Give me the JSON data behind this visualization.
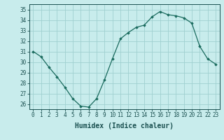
{
  "x": [
    0,
    1,
    2,
    3,
    4,
    5,
    6,
    7,
    8,
    9,
    10,
    11,
    12,
    13,
    14,
    15,
    16,
    17,
    18,
    19,
    20,
    21,
    22,
    23
  ],
  "y": [
    31.0,
    30.5,
    29.5,
    28.6,
    27.6,
    26.5,
    25.8,
    25.7,
    26.5,
    28.3,
    30.3,
    32.2,
    32.8,
    33.3,
    33.5,
    34.3,
    34.8,
    34.5,
    34.4,
    34.2,
    33.7,
    31.5,
    30.3,
    29.8
  ],
  "line_color": "#1a6b5e",
  "marker": "D",
  "marker_size": 1.8,
  "bg_color": "#c8ecec",
  "grid_color": "#a0d0d0",
  "xlabel": "Humidex (Indice chaleur)",
  "ylabel": "",
  "ylim": [
    25.5,
    35.5
  ],
  "xlim": [
    -0.5,
    23.5
  ],
  "yticks": [
    26,
    27,
    28,
    29,
    30,
    31,
    32,
    33,
    34,
    35
  ],
  "xticks": [
    0,
    1,
    2,
    3,
    4,
    5,
    6,
    7,
    8,
    9,
    10,
    11,
    12,
    13,
    14,
    15,
    16,
    17,
    18,
    19,
    20,
    21,
    22,
    23
  ],
  "xtick_labels": [
    "0",
    "1",
    "2",
    "3",
    "4",
    "5",
    "6",
    "7",
    "8",
    "9",
    "10",
    "11",
    "12",
    "13",
    "14",
    "15",
    "16",
    "17",
    "18",
    "19",
    "20",
    "21",
    "22",
    "23"
  ],
  "tick_fontsize": 5.5,
  "xlabel_fontsize": 7.0,
  "tick_color": "#1a5050",
  "label_color": "#1a5050",
  "linewidth": 0.9
}
